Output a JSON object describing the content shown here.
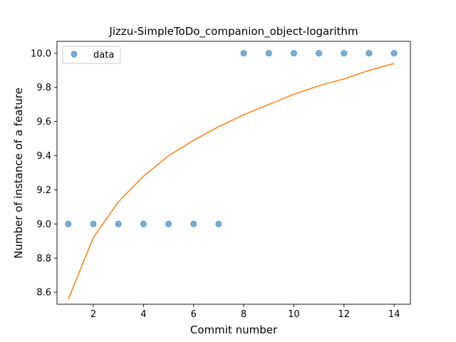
{
  "chart_data": {
    "type": "scatter",
    "title": "Jizzu-SimpleToDo_companion_object-logarithm",
    "xlabel": "Commit number",
    "ylabel": "Number of instance of a feature",
    "xlim": [
      0.55,
      14.65
    ],
    "ylim": [
      8.53,
      10.07
    ],
    "xticks": [
      2,
      4,
      6,
      8,
      10,
      12,
      14
    ],
    "yticks": [
      8.6,
      8.8,
      9.0,
      9.2,
      9.4,
      9.6,
      9.8,
      10.0
    ],
    "ytick_labels": [
      "8.6",
      "8.8",
      "9.0",
      "9.2",
      "9.4",
      "9.6",
      "9.8",
      "10.0"
    ],
    "grid": false,
    "legend": {
      "position": "top-left",
      "entries": [
        "data"
      ]
    },
    "series": [
      {
        "name": "data",
        "kind": "scatter",
        "color": "#1f77b4",
        "x": [
          1,
          2,
          3,
          4,
          5,
          6,
          7,
          8,
          9,
          10,
          11,
          12,
          13,
          14
        ],
        "y": [
          9.0,
          9.0,
          9.0,
          9.0,
          9.0,
          9.0,
          9.0,
          10.0,
          10.0,
          10.0,
          10.0,
          10.0,
          10.0,
          10.0
        ]
      },
      {
        "kind": "line",
        "color": "#ff7f0e",
        "x": [
          1,
          2,
          3,
          4,
          5,
          6,
          7,
          8,
          9,
          10,
          11,
          12,
          13,
          14
        ],
        "y": [
          8.56,
          8.92,
          9.13,
          9.28,
          9.4,
          9.49,
          9.57,
          9.64,
          9.7,
          9.76,
          9.81,
          9.85,
          9.9,
          9.94
        ]
      }
    ]
  }
}
